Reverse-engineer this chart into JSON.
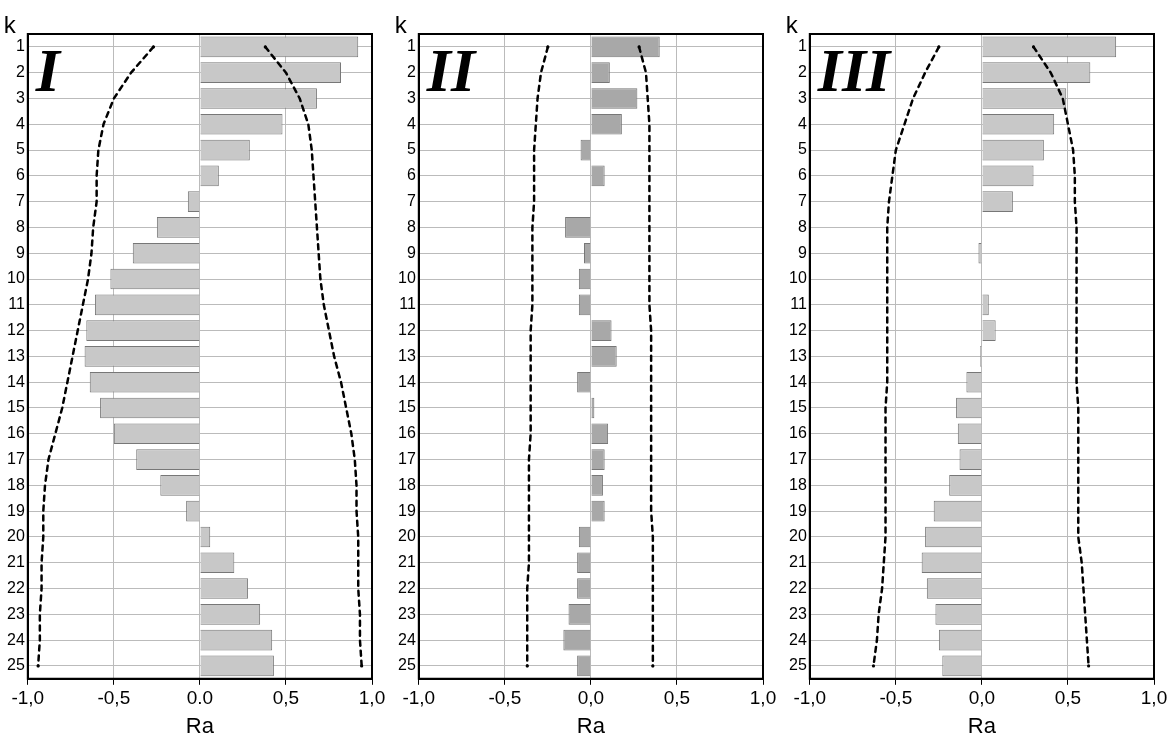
{
  "chart_data": [
    {
      "type": "bar",
      "orientation": "horizontal",
      "title": "I",
      "xlabel": "Ra",
      "ylabel": "k",
      "grid": true,
      "line_style": "dashed",
      "marker": "none",
      "categories": [
        "1",
        "2",
        "3",
        "4",
        "5",
        "6",
        "7",
        "8",
        "9",
        "10",
        "11",
        "12",
        "13",
        "14",
        "15",
        "16",
        "17",
        "18",
        "19",
        "20",
        "21",
        "22",
        "23",
        "24",
        "25"
      ],
      "xlim": [
        -1,
        1
      ],
      "xticks": [
        {
          "value": -1,
          "label": "-1,0"
        },
        {
          "value": -0.5,
          "label": "-0,5"
        },
        {
          "value": 0,
          "label": "0.0"
        },
        {
          "value": 0.5,
          "label": "0,5"
        },
        {
          "value": 1,
          "label": "1,0"
        }
      ],
      "series": [
        {
          "color": "#c8c8c8",
          "values": [
            0.92,
            0.82,
            0.68,
            0.48,
            0.29,
            0.11,
            -0.07,
            -0.25,
            -0.39,
            -0.52,
            -0.61,
            -0.66,
            -0.67,
            -0.64,
            -0.58,
            -0.5,
            -0.37,
            -0.23,
            -0.08,
            0.06,
            0.2,
            0.28,
            0.35,
            0.42,
            0.43
          ]
        },
        {
          "type": "line",
          "color": "#000000",
          "values": [
            -0.27,
            -0.4,
            -0.5,
            -0.56,
            -0.59,
            -0.6,
            -0.6,
            -0.62,
            -0.63,
            -0.65,
            -0.68,
            -0.71,
            -0.74,
            -0.77,
            -0.8,
            -0.84,
            -0.88,
            -0.9,
            -0.91,
            -0.91,
            -0.92,
            -0.92,
            -0.93,
            -0.93,
            -0.94
          ]
        },
        {
          "type": "line",
          "color": "#000000",
          "values": [
            0.38,
            0.5,
            0.58,
            0.63,
            0.65,
            0.66,
            0.67,
            0.68,
            0.69,
            0.7,
            0.72,
            0.75,
            0.78,
            0.82,
            0.85,
            0.88,
            0.9,
            0.91,
            0.91,
            0.92,
            0.92,
            0.92,
            0.93,
            0.93,
            0.94
          ]
        }
      ]
    },
    {
      "type": "bar",
      "orientation": "horizontal",
      "title": "II",
      "xlabel": "Ra",
      "ylabel": "k",
      "grid": true,
      "line_style": "dashed",
      "marker": "none",
      "categories": [
        "1",
        "2",
        "3",
        "4",
        "5",
        "6",
        "7",
        "8",
        "9",
        "10",
        "11",
        "12",
        "13",
        "14",
        "15",
        "16",
        "17",
        "18",
        "19",
        "20",
        "21",
        "22",
        "23",
        "24",
        "25"
      ],
      "xlim": [
        -1,
        1
      ],
      "xticks": [
        {
          "value": -1,
          "label": "-1,0"
        },
        {
          "value": -0.5,
          "label": "-0,5"
        },
        {
          "value": 0,
          "label": "0,0"
        },
        {
          "value": 0.5,
          "label": "0,5"
        },
        {
          "value": 1,
          "label": "1,0"
        }
      ],
      "series": [
        {
          "color": "#a8a8a8",
          "values": [
            0.4,
            0.11,
            0.27,
            0.18,
            -0.06,
            0.08,
            0,
            -0.15,
            -0.04,
            -0.07,
            -0.07,
            0.12,
            0.15,
            -0.08,
            0.02,
            0.1,
            0.08,
            0.07,
            0.08,
            -0.07,
            -0.08,
            -0.08,
            -0.13,
            -0.16,
            -0.08
          ]
        },
        {
          "type": "line",
          "color": "#000000",
          "values": [
            -0.25,
            -0.29,
            -0.31,
            -0.32,
            -0.33,
            -0.33,
            -0.33,
            -0.34,
            -0.34,
            -0.34,
            -0.34,
            -0.35,
            -0.35,
            -0.35,
            -0.35,
            -0.35,
            -0.36,
            -0.36,
            -0.36,
            -0.36,
            -0.36,
            -0.37,
            -0.37,
            -0.37,
            -0.37
          ]
        },
        {
          "type": "line",
          "color": "#000000",
          "values": [
            0.28,
            0.32,
            0.33,
            0.34,
            0.34,
            0.34,
            0.34,
            0.34,
            0.34,
            0.34,
            0.34,
            0.35,
            0.35,
            0.35,
            0.35,
            0.35,
            0.35,
            0.35,
            0.35,
            0.36,
            0.36,
            0.36,
            0.36,
            0.36,
            0.36
          ]
        }
      ]
    },
    {
      "type": "bar",
      "orientation": "horizontal",
      "title": "III",
      "xlabel": "Ra",
      "ylabel": "k",
      "grid": true,
      "line_style": "dashed",
      "marker": "none",
      "categories": [
        "1",
        "2",
        "3",
        "4",
        "5",
        "6",
        "7",
        "8",
        "9",
        "10",
        "11",
        "12",
        "13",
        "14",
        "15",
        "16",
        "17",
        "18",
        "19",
        "20",
        "21",
        "22",
        "23",
        "24",
        "25"
      ],
      "xlim": [
        -1,
        1
      ],
      "xticks": [
        {
          "value": -1,
          "label": "-1,0"
        },
        {
          "value": -0.5,
          "label": "-0,5"
        },
        {
          "value": 0,
          "label": "0,0"
        },
        {
          "value": 0.5,
          "label": "0,5"
        },
        {
          "value": 1,
          "label": "1,0"
        }
      ],
      "series": [
        {
          "color": "#c8c8c8",
          "values": [
            0.78,
            0.63,
            0.49,
            0.42,
            0.36,
            0.3,
            0.18,
            0,
            -0.02,
            0,
            0.04,
            0.08,
            -0.01,
            -0.09,
            -0.15,
            -0.14,
            -0.13,
            -0.19,
            -0.28,
            -0.33,
            -0.35,
            -0.32,
            -0.27,
            -0.25,
            -0.23
          ]
        },
        {
          "type": "line",
          "color": "#000000",
          "values": [
            -0.25,
            -0.33,
            -0.4,
            -0.45,
            -0.5,
            -0.52,
            -0.54,
            -0.55,
            -0.55,
            -0.55,
            -0.55,
            -0.55,
            -0.55,
            -0.55,
            -0.56,
            -0.56,
            -0.56,
            -0.56,
            -0.56,
            -0.56,
            -0.57,
            -0.58,
            -0.6,
            -0.61,
            -0.63
          ]
        },
        {
          "type": "line",
          "color": "#000000",
          "values": [
            0.3,
            0.4,
            0.47,
            0.5,
            0.53,
            0.54,
            0.54,
            0.55,
            0.55,
            0.55,
            0.55,
            0.55,
            0.55,
            0.55,
            0.56,
            0.56,
            0.56,
            0.56,
            0.56,
            0.56,
            0.58,
            0.59,
            0.6,
            0.61,
            0.62
          ]
        }
      ]
    }
  ]
}
